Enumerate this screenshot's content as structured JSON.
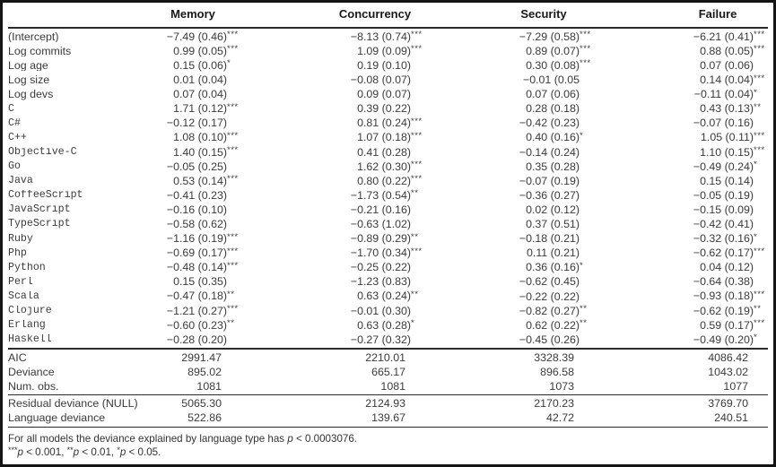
{
  "table": {
    "columns": [
      "Memory",
      "Concurrency",
      "Security",
      "Failure"
    ],
    "rows": [
      {
        "label": "(Intercept)",
        "mono": false,
        "cells": [
          [
            "−7.49 (0.46)",
            "***"
          ],
          [
            "−8.13 (0.74)",
            "***"
          ],
          [
            "−7.29 (0.58)",
            "***"
          ],
          [
            "−6.21 (0.41)",
            "***"
          ]
        ]
      },
      {
        "label": "Log commits",
        "mono": false,
        "cells": [
          [
            "0.99 (0.05)",
            "***"
          ],
          [
            "1.09 (0.09)",
            "***"
          ],
          [
            "0.89 (0.07)",
            "***"
          ],
          [
            "0.88 (0.05)",
            "***"
          ]
        ]
      },
      {
        "label": "Log age",
        "mono": false,
        "cells": [
          [
            "0.15 (0.06)",
            "*"
          ],
          [
            "0.19 (0.10)",
            ""
          ],
          [
            "0.30 (0.08)",
            "***"
          ],
          [
            "0.07 (0.06)",
            ""
          ]
        ]
      },
      {
        "label": "Log size",
        "mono": false,
        "cells": [
          [
            "0.01 (0.04)",
            ""
          ],
          [
            "−0.08 (0.07)",
            ""
          ],
          [
            "−0.01 (0.05",
            ""
          ],
          [
            "0.14 (0.04)",
            "***"
          ]
        ]
      },
      {
        "label": "Log devs",
        "mono": false,
        "cells": [
          [
            "0.07 (0.04)",
            ""
          ],
          [
            "0.09 (0.07)",
            ""
          ],
          [
            "0.07 (0.06)",
            ""
          ],
          [
            "−0.11 (0.04)",
            "*"
          ]
        ]
      },
      {
        "label": "C",
        "mono": true,
        "cells": [
          [
            "1.71 (0.12)",
            "***"
          ],
          [
            "0.39 (0.22)",
            ""
          ],
          [
            "0.28 (0.18)",
            ""
          ],
          [
            "0.43 (0.13)",
            "**"
          ]
        ]
      },
      {
        "label": "C#",
        "mono": true,
        "cells": [
          [
            "−0.12 (0.17)",
            ""
          ],
          [
            "0.81 (0.24)",
            "***"
          ],
          [
            "−0.42 (0.23)",
            ""
          ],
          [
            "−0.07 (0.16)",
            ""
          ]
        ]
      },
      {
        "label": "C++",
        "mono": true,
        "cells": [
          [
            "1.08 (0.10)",
            "***"
          ],
          [
            "1.07 (0.18)",
            "***"
          ],
          [
            "0.40 (0.16)",
            "*"
          ],
          [
            "1.05 (0.11)",
            "***"
          ]
        ]
      },
      {
        "label": "Objective-C",
        "mono": true,
        "cells": [
          [
            "1.40 (0.15)",
            "***"
          ],
          [
            "0.41 (0.28)",
            ""
          ],
          [
            "−0.14 (0.24)",
            ""
          ],
          [
            "1.10 (0.15)",
            "***"
          ]
        ]
      },
      {
        "label": "Go",
        "mono": true,
        "cells": [
          [
            "−0.05 (0.25)",
            ""
          ],
          [
            "1.62 (0.30)",
            "***"
          ],
          [
            "0.35 (0.28)",
            ""
          ],
          [
            "−0.49 (0.24)",
            "*"
          ]
        ]
      },
      {
        "label": "Java",
        "mono": true,
        "cells": [
          [
            "0.53 (0.14)",
            "***"
          ],
          [
            "0.80 (0.22)",
            "***"
          ],
          [
            "−0.07 (0.19)",
            ""
          ],
          [
            "0.15 (0.14)",
            ""
          ]
        ]
      },
      {
        "label": "CoffeeScript",
        "mono": true,
        "cells": [
          [
            "−0.41 (0.23)",
            ""
          ],
          [
            "−1.73 (0.54)",
            "**"
          ],
          [
            "−0.36 (0.27)",
            ""
          ],
          [
            "−0.05 (0.19)",
            ""
          ]
        ]
      },
      {
        "label": "JavaScript",
        "mono": true,
        "cells": [
          [
            "−0.16 (0.10)",
            ""
          ],
          [
            "−0.21 (0.16)",
            ""
          ],
          [
            "0.02 (0.12)",
            ""
          ],
          [
            "−0.15 (0.09)",
            ""
          ]
        ]
      },
      {
        "label": "TypeScript",
        "mono": true,
        "cells": [
          [
            "−0.58 (0.62)",
            ""
          ],
          [
            "−0.63 (1.02)",
            ""
          ],
          [
            "0.37 (0.51)",
            ""
          ],
          [
            "−0.42 (0.41)",
            ""
          ]
        ]
      },
      {
        "label": "Ruby",
        "mono": true,
        "cells": [
          [
            "−1.16 (0.19)",
            "***"
          ],
          [
            "−0.89 (0.29)",
            "**"
          ],
          [
            "−0.18 (0.21)",
            ""
          ],
          [
            "−0.32 (0.16)",
            "*"
          ]
        ]
      },
      {
        "label": "Php",
        "mono": true,
        "cells": [
          [
            "−0.69 (0.17)",
            "***"
          ],
          [
            "−1.70 (0.34)",
            "***"
          ],
          [
            "0.11 (0.21)",
            ""
          ],
          [
            "−0.62 (0.17)",
            "***"
          ]
        ]
      },
      {
        "label": "Python",
        "mono": true,
        "cells": [
          [
            "−0.48 (0.14)",
            "***"
          ],
          [
            "−0.25 (0.22)",
            ""
          ],
          [
            "0.36 (0.16)",
            "*"
          ],
          [
            "0.04 (0.12)",
            ""
          ]
        ]
      },
      {
        "label": "Perl",
        "mono": true,
        "cells": [
          [
            "0.15 (0.35)",
            ""
          ],
          [
            "−1.23 (0.83)",
            ""
          ],
          [
            "−0.62 (0.45)",
            ""
          ],
          [
            "−0.64 (0.38)",
            ""
          ]
        ]
      },
      {
        "label": "Scala",
        "mono": true,
        "cells": [
          [
            "−0.47 (0.18)",
            "**"
          ],
          [
            "0.63 (0.24)",
            "**"
          ],
          [
            "−0.22 (0.22)",
            ""
          ],
          [
            "−0.93 (0.18)",
            "***"
          ]
        ]
      },
      {
        "label": "Clojure",
        "mono": true,
        "cells": [
          [
            "−1.21 (0.27)",
            "***"
          ],
          [
            "−0.01 (0.30)",
            ""
          ],
          [
            "−0.82 (0.27)",
            "**"
          ],
          [
            "−0.62 (0.19)",
            "**"
          ]
        ]
      },
      {
        "label": "Erlang",
        "mono": true,
        "cells": [
          [
            "−0.60 (0.23)",
            "**"
          ],
          [
            "0.63 (0.28)",
            "*"
          ],
          [
            "0.62 (0.22)",
            "**"
          ],
          [
            "0.59 (0.17)",
            "***"
          ]
        ]
      },
      {
        "label": "Haskell",
        "mono": true,
        "cells": [
          [
            "−0.28 (0.20)",
            ""
          ],
          [
            "−0.27 (0.32)",
            ""
          ],
          [
            "−0.45 (0.26)",
            ""
          ],
          [
            "−0.49 (0.20)",
            "*"
          ]
        ]
      }
    ],
    "stats1": [
      {
        "label": "AIC",
        "values": [
          "2991.47",
          "2210.01",
          "3328.39",
          "4086.42"
        ]
      },
      {
        "label": "Deviance",
        "values": [
          "895.02",
          "665.17",
          "896.58",
          "1043.02"
        ]
      },
      {
        "label": "Num. obs.",
        "values": [
          "1081",
          "1081",
          "1073",
          "1077"
        ]
      }
    ],
    "stats2": [
      {
        "label": "Residual deviance (NULL)",
        "values": [
          "5065.30",
          "2124.93",
          "2170.23",
          "3769.70"
        ]
      },
      {
        "label": "Language deviance",
        "values": [
          "522.86",
          "139.67",
          "42.72",
          "240.51"
        ]
      }
    ],
    "notes": [
      [
        {
          "t": "For all models the deviance explained by language type has "
        },
        {
          "t": "p",
          "i": true
        },
        {
          "t": " < 0.0003076."
        }
      ],
      [
        {
          "t": "***",
          "sup": true
        },
        {
          "t": "p",
          "i": true
        },
        {
          "t": " < 0.001, "
        },
        {
          "t": "**",
          "sup": true
        },
        {
          "t": "p",
          "i": true
        },
        {
          "t": " < 0.01, "
        },
        {
          "t": "*",
          "sup": true
        },
        {
          "t": "p",
          "i": true
        },
        {
          "t": " < 0.05."
        }
      ]
    ]
  }
}
